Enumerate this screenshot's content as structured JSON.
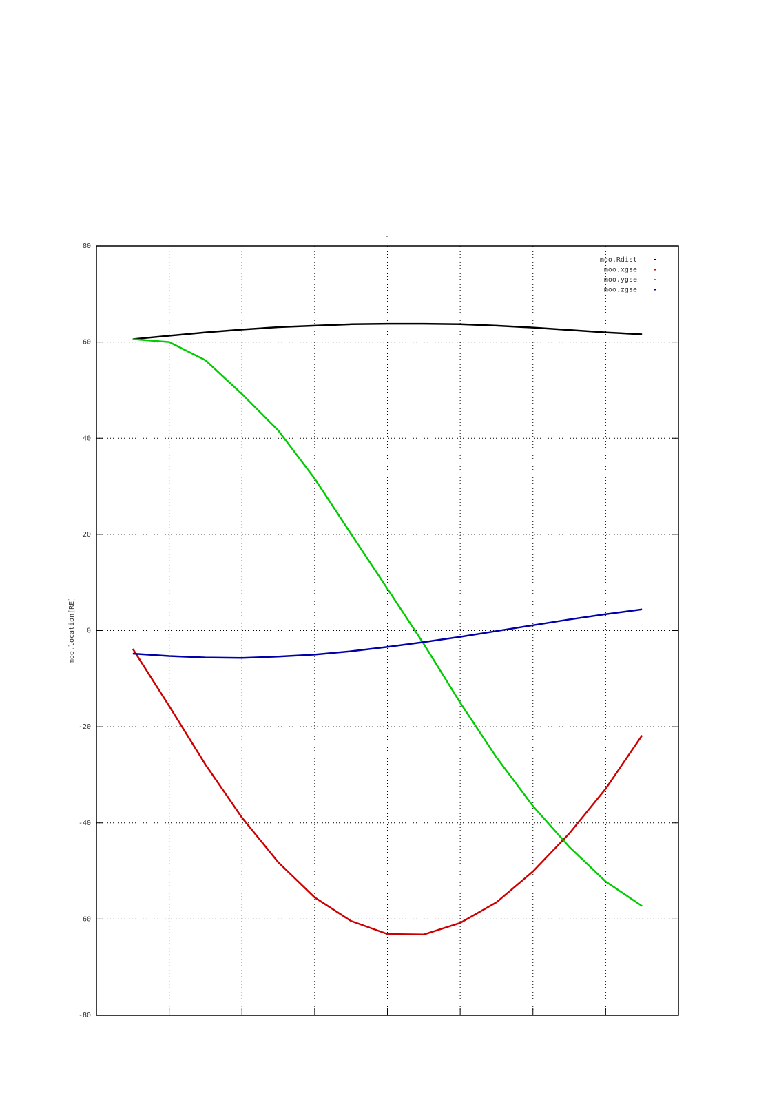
{
  "chart_data": {
    "type": "line",
    "title": "-",
    "ylabel": "moo.location[RE]",
    "x": [
      0.5,
      1,
      1.5,
      2,
      2.5,
      3,
      3.5,
      4,
      4.5,
      5,
      5.5,
      6,
      6.5,
      7,
      7.5
    ],
    "xlim": [
      0,
      8
    ],
    "xticks": [
      1,
      2,
      3,
      4,
      5,
      6,
      7
    ],
    "ylim": [
      -80,
      80
    ],
    "yticks": [
      -80,
      -60,
      -40,
      -20,
      0,
      20,
      40,
      60,
      80
    ],
    "grid": true,
    "legend": "upper right",
    "series": [
      {
        "name": "moo.Rdist",
        "color": "#000000",
        "values": [
          60.6,
          61.3,
          62.0,
          62.6,
          63.1,
          63.4,
          63.7,
          63.8,
          63.8,
          63.7,
          63.4,
          63.0,
          62.5,
          62.0,
          61.6
        ]
      },
      {
        "name": "moo.xgse",
        "color": "#cc0000",
        "values": [
          -3.8,
          -15.7,
          -27.9,
          -38.9,
          -48.2,
          -55.5,
          -60.4,
          -63.1,
          -63.2,
          -60.8,
          -56.5,
          -50.1,
          -42.2,
          -32.9,
          -21.8
        ]
      },
      {
        "name": "moo.ygse",
        "color": "#00cc00",
        "values": [
          60.6,
          60.0,
          56.2,
          49.2,
          41.6,
          31.6,
          20.1,
          8.7,
          -2.8,
          -15.0,
          -26.4,
          -36.5,
          -45.0,
          -52.2,
          -57.3
        ]
      },
      {
        "name": "moo.zgse",
        "color": "#0000aa",
        "values": [
          -4.8,
          -5.3,
          -5.6,
          -5.7,
          -5.4,
          -5.0,
          -4.3,
          -3.4,
          -2.4,
          -1.3,
          -0.1,
          1.1,
          2.3,
          3.4,
          4.4
        ]
      }
    ]
  }
}
